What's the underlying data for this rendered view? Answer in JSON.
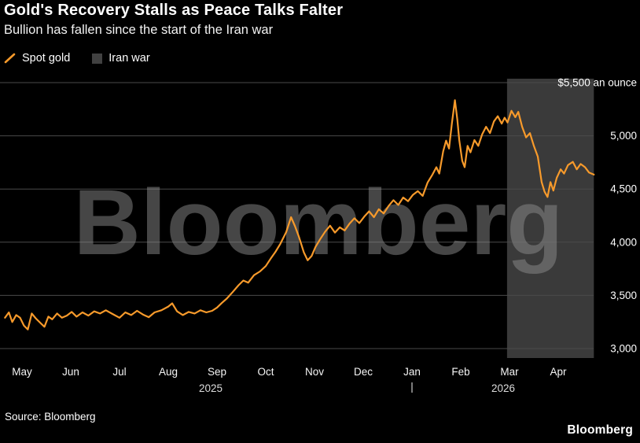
{
  "header": {
    "title": "Gold's Recovery Stalls as Peace Talks Falter",
    "subtitle": "Bullion has fallen since the start of the Iran war"
  },
  "legend": [
    {
      "label": "Spot gold",
      "marker": "line-slash-icon",
      "color": "#F79A2B"
    },
    {
      "label": "Iran war",
      "marker": "band-swatch-icon",
      "color": "#414141"
    }
  ],
  "watermark": "Bloomberg",
  "footer": {
    "source": "Source: Bloomberg",
    "brand": "Bloomberg"
  },
  "chart_data": {
    "type": "line",
    "title": "Gold's Recovery Stalls as Peace Talks Falter",
    "subtitle": "Bullion has fallen since the start of the Iran war",
    "ylabel": "$ an ounce",
    "ylim": [
      3000,
      5500
    ],
    "grid": "horizontal",
    "legend_position": "top-left",
    "y_axis": {
      "side": "right",
      "ticks": [
        {
          "value": 5500,
          "label": "$5,500 an ounce"
        },
        {
          "value": 5000,
          "label": "5,000"
        },
        {
          "value": 4500,
          "label": "4,500"
        },
        {
          "value": 4000,
          "label": "4,000"
        },
        {
          "value": 3500,
          "label": "3,500"
        },
        {
          "value": 3000,
          "label": "3,000"
        }
      ]
    },
    "x_axis": {
      "months": [
        "May",
        "Jun",
        "Jul",
        "Aug",
        "Sep",
        "Oct",
        "Nov",
        "Dec",
        "Jan",
        "Feb",
        "Mar",
        "Apr"
      ],
      "years": [
        {
          "label": "2025",
          "month_index": 4
        },
        {
          "label": "2026",
          "month_index": 10
        }
      ],
      "divider": "|",
      "divider_month_index": 8
    },
    "band": {
      "name": "Iran war",
      "color": "#3a3a3a",
      "start_month_index": 9.95,
      "end_month_index": 11.73
    },
    "series": [
      {
        "name": "Spot gold",
        "color": "#F79A2B",
        "points": [
          [
            -0.35,
            3290
          ],
          [
            -0.27,
            3340
          ],
          [
            -0.2,
            3250
          ],
          [
            -0.12,
            3315
          ],
          [
            -0.04,
            3290
          ],
          [
            0.04,
            3215
          ],
          [
            0.12,
            3180
          ],
          [
            0.2,
            3330
          ],
          [
            0.28,
            3285
          ],
          [
            0.38,
            3240
          ],
          [
            0.46,
            3205
          ],
          [
            0.54,
            3300
          ],
          [
            0.62,
            3275
          ],
          [
            0.72,
            3330
          ],
          [
            0.82,
            3290
          ],
          [
            0.92,
            3310
          ],
          [
            1.02,
            3345
          ],
          [
            1.12,
            3300
          ],
          [
            1.24,
            3340
          ],
          [
            1.36,
            3310
          ],
          [
            1.48,
            3350
          ],
          [
            1.6,
            3330
          ],
          [
            1.72,
            3360
          ],
          [
            1.86,
            3325
          ],
          [
            2.0,
            3290
          ],
          [
            2.12,
            3340
          ],
          [
            2.24,
            3315
          ],
          [
            2.36,
            3355
          ],
          [
            2.48,
            3320
          ],
          [
            2.6,
            3295
          ],
          [
            2.72,
            3340
          ],
          [
            2.86,
            3360
          ],
          [
            3.0,
            3395
          ],
          [
            3.08,
            3425
          ],
          [
            3.18,
            3350
          ],
          [
            3.3,
            3315
          ],
          [
            3.42,
            3345
          ],
          [
            3.54,
            3330
          ],
          [
            3.66,
            3360
          ],
          [
            3.78,
            3340
          ],
          [
            3.9,
            3355
          ],
          [
            4.0,
            3385
          ],
          [
            4.1,
            3430
          ],
          [
            4.2,
            3470
          ],
          [
            4.32,
            3530
          ],
          [
            4.44,
            3595
          ],
          [
            4.54,
            3640
          ],
          [
            4.64,
            3620
          ],
          [
            4.76,
            3690
          ],
          [
            4.88,
            3725
          ],
          [
            5.0,
            3775
          ],
          [
            5.1,
            3845
          ],
          [
            5.2,
            3910
          ],
          [
            5.3,
            3985
          ],
          [
            5.42,
            4095
          ],
          [
            5.52,
            4235
          ],
          [
            5.6,
            4150
          ],
          [
            5.68,
            4050
          ],
          [
            5.78,
            3905
          ],
          [
            5.86,
            3830
          ],
          [
            5.94,
            3870
          ],
          [
            6.02,
            3955
          ],
          [
            6.12,
            4030
          ],
          [
            6.22,
            4100
          ],
          [
            6.32,
            4155
          ],
          [
            6.42,
            4090
          ],
          [
            6.52,
            4140
          ],
          [
            6.62,
            4110
          ],
          [
            6.72,
            4175
          ],
          [
            6.82,
            4225
          ],
          [
            6.92,
            4180
          ],
          [
            7.02,
            4240
          ],
          [
            7.12,
            4290
          ],
          [
            7.22,
            4235
          ],
          [
            7.32,
            4310
          ],
          [
            7.42,
            4270
          ],
          [
            7.52,
            4340
          ],
          [
            7.62,
            4395
          ],
          [
            7.72,
            4350
          ],
          [
            7.82,
            4420
          ],
          [
            7.92,
            4385
          ],
          [
            8.02,
            4445
          ],
          [
            8.12,
            4480
          ],
          [
            8.22,
            4435
          ],
          [
            8.32,
            4560
          ],
          [
            8.42,
            4635
          ],
          [
            8.5,
            4705
          ],
          [
            8.56,
            4645
          ],
          [
            8.64,
            4855
          ],
          [
            8.7,
            4955
          ],
          [
            8.76,
            4880
          ],
          [
            8.82,
            5120
          ],
          [
            8.88,
            5335
          ],
          [
            8.93,
            5150
          ],
          [
            8.97,
            4960
          ],
          [
            9.03,
            4765
          ],
          [
            9.08,
            4705
          ],
          [
            9.14,
            4905
          ],
          [
            9.2,
            4845
          ],
          [
            9.28,
            4960
          ],
          [
            9.36,
            4905
          ],
          [
            9.44,
            5015
          ],
          [
            9.52,
            5085
          ],
          [
            9.6,
            5025
          ],
          [
            9.68,
            5135
          ],
          [
            9.76,
            5185
          ],
          [
            9.84,
            5115
          ],
          [
            9.9,
            5170
          ],
          [
            9.96,
            5125
          ],
          [
            10.04,
            5235
          ],
          [
            10.12,
            5175
          ],
          [
            10.18,
            5225
          ],
          [
            10.26,
            5085
          ],
          [
            10.34,
            4985
          ],
          [
            10.42,
            5025
          ],
          [
            10.5,
            4905
          ],
          [
            10.58,
            4805
          ],
          [
            10.66,
            4565
          ],
          [
            10.72,
            4475
          ],
          [
            10.78,
            4425
          ],
          [
            10.84,
            4565
          ],
          [
            10.9,
            4485
          ],
          [
            10.97,
            4605
          ],
          [
            11.05,
            4685
          ],
          [
            11.12,
            4645
          ],
          [
            11.2,
            4725
          ],
          [
            11.3,
            4755
          ],
          [
            11.38,
            4685
          ],
          [
            11.46,
            4735
          ],
          [
            11.55,
            4705
          ],
          [
            11.63,
            4655
          ],
          [
            11.73,
            4635
          ]
        ]
      }
    ]
  }
}
